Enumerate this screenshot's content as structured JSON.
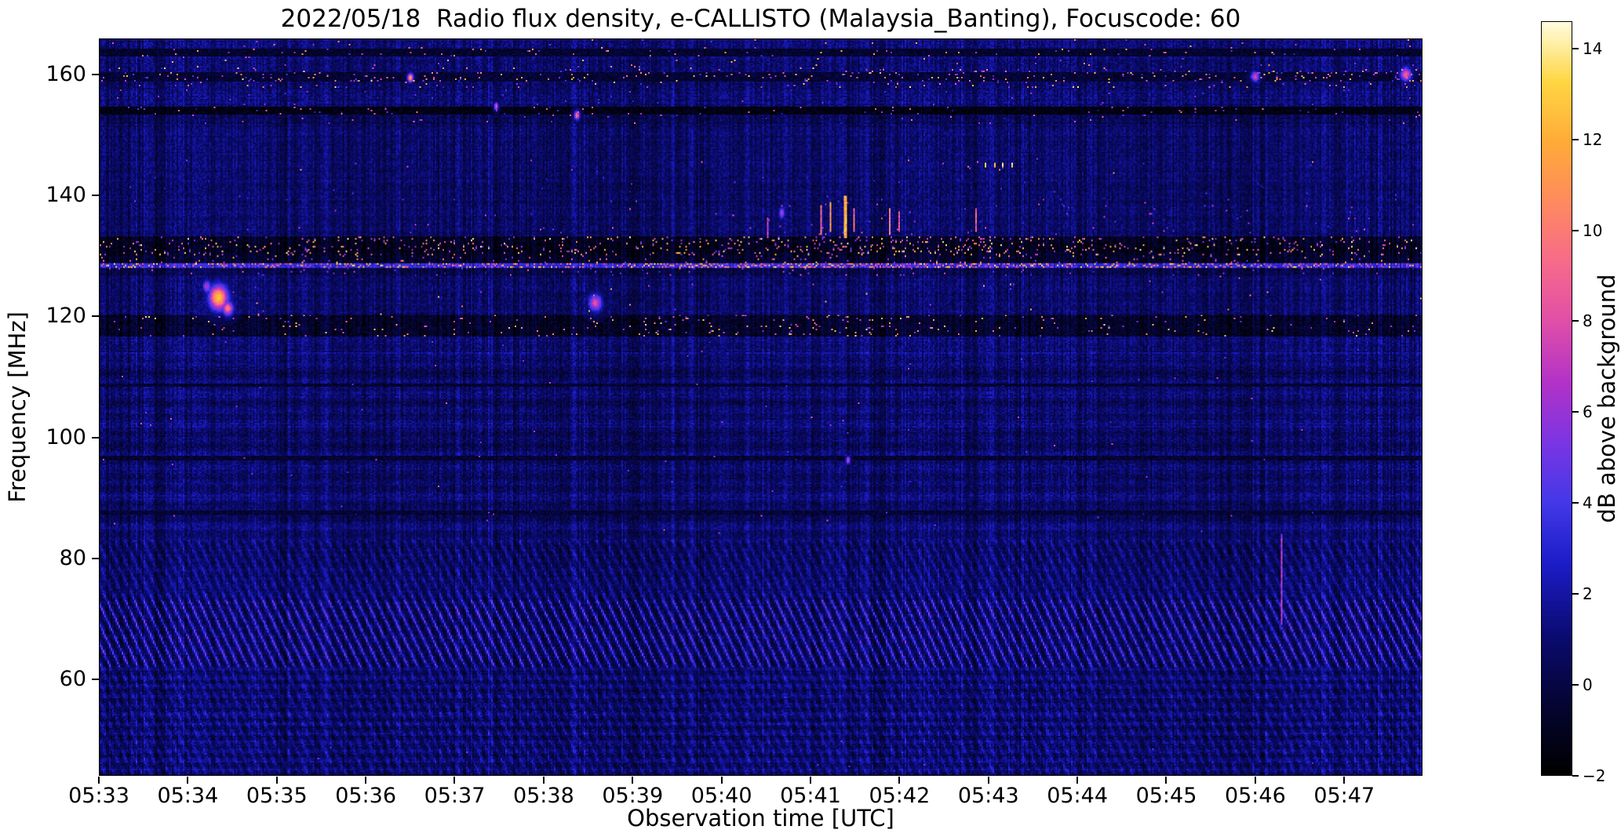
{
  "title": "2022/05/18  Radio flux density, e-CALLISTO (Malaysia_Banting), Focuscode: 60",
  "chart_data": {
    "type": "heatmap",
    "title": "2022/05/18  Radio flux density, e-CALLISTO (Malaysia_Banting), Focuscode: 60",
    "xlabel": "Observation time [UTC]",
    "ylabel": "Frequency [MHz]",
    "colorbar": {
      "label": "dB above background",
      "ticks": [
        {
          "label": "14",
          "value": 14
        },
        {
          "label": "12",
          "value": 12
        },
        {
          "label": "10",
          "value": 10
        },
        {
          "label": "8",
          "value": 8
        },
        {
          "label": "6",
          "value": 6
        },
        {
          "label": "4",
          "value": 4
        },
        {
          "label": "2",
          "value": 2
        },
        {
          "label": "0",
          "value": 0
        },
        {
          "label": "−2",
          "value": -2
        }
      ],
      "value_range": [
        -2,
        14.6
      ]
    },
    "x_axis": {
      "start": "05:33",
      "span_minutes": 14.88,
      "ticks": [
        {
          "label": "05:33",
          "minute": 0
        },
        {
          "label": "05:34",
          "minute": 1
        },
        {
          "label": "05:35",
          "minute": 2
        },
        {
          "label": "05:36",
          "minute": 3
        },
        {
          "label": "05:37",
          "minute": 4
        },
        {
          "label": "05:38",
          "minute": 5
        },
        {
          "label": "05:39",
          "minute": 6
        },
        {
          "label": "05:40",
          "minute": 7
        },
        {
          "label": "05:41",
          "minute": 8
        },
        {
          "label": "05:42",
          "minute": 9
        },
        {
          "label": "05:43",
          "minute": 10
        },
        {
          "label": "05:44",
          "minute": 11
        },
        {
          "label": "05:45",
          "minute": 12
        },
        {
          "label": "05:46",
          "minute": 13
        },
        {
          "label": "05:47",
          "minute": 14
        }
      ]
    },
    "y_axis": {
      "range_mhz": [
        44,
        166
      ],
      "ticks": [
        160,
        140,
        120,
        100,
        80,
        60
      ]
    },
    "colormap_stops": [
      [
        0.0,
        "#000000"
      ],
      [
        0.1,
        "#050537"
      ],
      [
        0.18,
        "#0a0a6e"
      ],
      [
        0.28,
        "#1c1cc8"
      ],
      [
        0.36,
        "#4338e8"
      ],
      [
        0.44,
        "#7a35e3"
      ],
      [
        0.52,
        "#b232c8"
      ],
      [
        0.6,
        "#e04ea8"
      ],
      [
        0.68,
        "#f76a8a"
      ],
      [
        0.76,
        "#ff8a5f"
      ],
      [
        0.84,
        "#ffab38"
      ],
      [
        0.92,
        "#ffd643"
      ],
      [
        1.0,
        "#fffde0"
      ]
    ],
    "background": {
      "mean_db": 0.8,
      "noise_db": 1.6
    },
    "spectral_features": {
      "dark_rows": [
        {
          "f": 163.9,
          "w": 1.3,
          "db": -1.1,
          "p": 0.012,
          "sdb": [
            3,
            12
          ]
        },
        {
          "f": 159.7,
          "w": 1.6,
          "db": -0.7,
          "p": 0.028,
          "sdb": [
            3,
            13
          ]
        },
        {
          "f": 154.2,
          "w": 1.5,
          "db": -1.4,
          "p": 0.01,
          "sdb": [
            2,
            10
          ]
        },
        {
          "f": 108.6,
          "w": 0.5,
          "db": -0.8,
          "p": 0.002,
          "sdb": [
            2,
            6
          ]
        },
        {
          "f": 96.6,
          "w": 0.6,
          "db": -0.8,
          "p": 0.002,
          "sdb": [
            2,
            8
          ]
        },
        {
          "f": 87.5,
          "w": 0.6,
          "db": -0.7,
          "p": 0.001,
          "sdb": [
            2,
            6
          ]
        }
      ],
      "bands": [
        {
          "f_lo": 161.3,
          "f_hi": 165.9,
          "add": 0.2,
          "p": 0.006,
          "sdb": [
            4,
            13
          ]
        },
        {
          "f_lo": 157.9,
          "f_hi": 161.4,
          "add": 0.0,
          "p": 0.018,
          "sdb": [
            3,
            14
          ],
          "tm": [
            [
              0.55,
              1.0,
              1.6
            ]
          ]
        },
        {
          "f_lo": 155.2,
          "f_hi": 157.7,
          "add": 0.3,
          "p": 0.005,
          "sdb": [
            2,
            7
          ]
        },
        {
          "f_lo": 151.9,
          "f_hi": 154.9,
          "add": -0.3,
          "p": 0.007,
          "sdb": [
            2,
            10
          ]
        },
        {
          "f_lo": 143.8,
          "f_hi": 146.2,
          "add": 0.0,
          "p": 0.002,
          "sdb": [
            3,
            11
          ],
          "tm": [
            [
              0.63,
              0.7,
              5
            ]
          ]
        },
        {
          "f_lo": 139.0,
          "f_hi": 143.2,
          "add": 0.0,
          "p": 0.004,
          "sdb": [
            2,
            5
          ]
        },
        {
          "f_lo": 133.5,
          "f_hi": 139.5,
          "add": 0.0,
          "p": 0.004,
          "sdb": [
            3,
            9
          ],
          "tm": [
            [
              0.5,
              0.62,
              3
            ],
            [
              0.64,
              0.69,
              2.5
            ]
          ]
        },
        {
          "f_lo": 130.2,
          "f_hi": 133.4,
          "add": -1.8,
          "p": 0.055,
          "sdb": [
            4,
            14.5
          ],
          "tm": [
            [
              0.4,
              0.76,
              1.5
            ]
          ]
        },
        {
          "f_lo": 129.0,
          "f_hi": 130.2,
          "add": -1.5,
          "p": 0.03,
          "sdb": [
            4,
            13
          ]
        },
        {
          "f_lo": 128.1,
          "f_hi": 129.0,
          "add": 2.4,
          "p": 0.3,
          "sdb": [
            3,
            14
          ],
          "tm": [
            [
              0.4,
              0.72,
              1.4
            ]
          ]
        },
        {
          "f_lo": 126.9,
          "f_hi": 128.1,
          "add": -0.7,
          "p": 0.018,
          "sdb": [
            2,
            9
          ]
        },
        {
          "f_lo": 120.4,
          "f_hi": 126.9,
          "add": 0.0,
          "p": 0.002,
          "sdb": [
            4,
            13
          ]
        },
        {
          "f_lo": 116.6,
          "f_hi": 120.4,
          "add": -1.5,
          "p": 0.016,
          "sdb": [
            4,
            14
          ],
          "tm": [
            [
              0.4,
              0.68,
              2.2
            ]
          ]
        },
        {
          "f_lo": 112.0,
          "f_hi": 116.6,
          "add": 0.25,
          "p": 0.001,
          "sdb": [
            2,
            6
          ]
        },
        {
          "f_lo": 84.0,
          "f_hi": 112.0,
          "add": 0.0,
          "p": 0.0006,
          "sdb": [
            3,
            9
          ]
        },
        {
          "f_lo": 44.0,
          "f_hi": 50.0,
          "add": 0.1,
          "p": 0.0008,
          "sdb": [
            2,
            6
          ]
        }
      ],
      "blobs": [
        {
          "t": 0.09,
          "f": 123.2,
          "dt": 0.007,
          "df": 2.0,
          "db": 13
        },
        {
          "t": 0.097,
          "f": 121.4,
          "dt": 0.004,
          "df": 1.2,
          "db": 10
        },
        {
          "t": 0.081,
          "f": 125.0,
          "dt": 0.003,
          "df": 1.0,
          "db": 7
        },
        {
          "t": 0.375,
          "f": 122.3,
          "dt": 0.005,
          "df": 1.4,
          "db": 8
        },
        {
          "t": 0.361,
          "f": 153.4,
          "dt": 0.002,
          "df": 0.7,
          "db": 10
        },
        {
          "t": 0.235,
          "f": 159.6,
          "dt": 0.002,
          "df": 0.7,
          "db": 12
        },
        {
          "t": 0.988,
          "f": 160.2,
          "dt": 0.004,
          "df": 1.1,
          "db": 9
        },
        {
          "t": 0.874,
          "f": 159.8,
          "dt": 0.003,
          "df": 0.8,
          "db": 8
        },
        {
          "t": 0.566,
          "f": 96.2,
          "dt": 0.0015,
          "df": 0.6,
          "db": 8
        },
        {
          "t": 0.516,
          "f": 137.2,
          "dt": 0.002,
          "df": 0.9,
          "db": 7
        },
        {
          "t": 0.3,
          "f": 154.9,
          "dt": 0.0015,
          "df": 0.6,
          "db": 9
        }
      ],
      "vertical_streaks": [
        {
          "t": 0.505,
          "f_lo": 133.0,
          "f_hi": 136.5,
          "db": 7,
          "w": 1
        },
        {
          "t": 0.545,
          "f_lo": 133.5,
          "f_hi": 138.5,
          "db": 9,
          "w": 1
        },
        {
          "t": 0.552,
          "f_lo": 134.0,
          "f_hi": 139.0,
          "db": 11,
          "w": 1
        },
        {
          "t": 0.563,
          "f_lo": 133.0,
          "f_hi": 140.0,
          "db": 12,
          "w": 2
        },
        {
          "t": 0.57,
          "f_lo": 134.0,
          "f_hi": 138.0,
          "db": 9,
          "w": 1
        },
        {
          "t": 0.597,
          "f_lo": 133.5,
          "f_hi": 138.0,
          "db": 10,
          "w": 1
        },
        {
          "t": 0.604,
          "f_lo": 134.0,
          "f_hi": 137.5,
          "db": 8,
          "w": 1
        },
        {
          "t": 0.662,
          "f_lo": 134.0,
          "f_hi": 138.0,
          "db": 8,
          "w": 1
        },
        {
          "t": 0.669,
          "f_lo": 144.6,
          "f_hi": 145.4,
          "db": 13,
          "w": 1
        },
        {
          "t": 0.676,
          "f_lo": 144.6,
          "f_hi": 145.4,
          "db": 13,
          "w": 1
        },
        {
          "t": 0.683,
          "f_lo": 144.6,
          "f_hi": 145.4,
          "db": 13,
          "w": 1
        },
        {
          "t": 0.69,
          "f_lo": 144.6,
          "f_hi": 145.4,
          "db": 13,
          "w": 1
        },
        {
          "t": 0.893,
          "f_lo": 69.0,
          "f_hi": 84.0,
          "db": 6.5,
          "w": 1
        }
      ],
      "diagonal_ripples": {
        "f_max": 83,
        "strong_f_lo": 62,
        "strong_f_hi": 74,
        "base_amp_db": 1.05,
        "strong_amp_db": 1.7,
        "low_amp_db": 0.8,
        "crest_db_range": [
          1.6,
          4.0
        ]
      }
    }
  }
}
